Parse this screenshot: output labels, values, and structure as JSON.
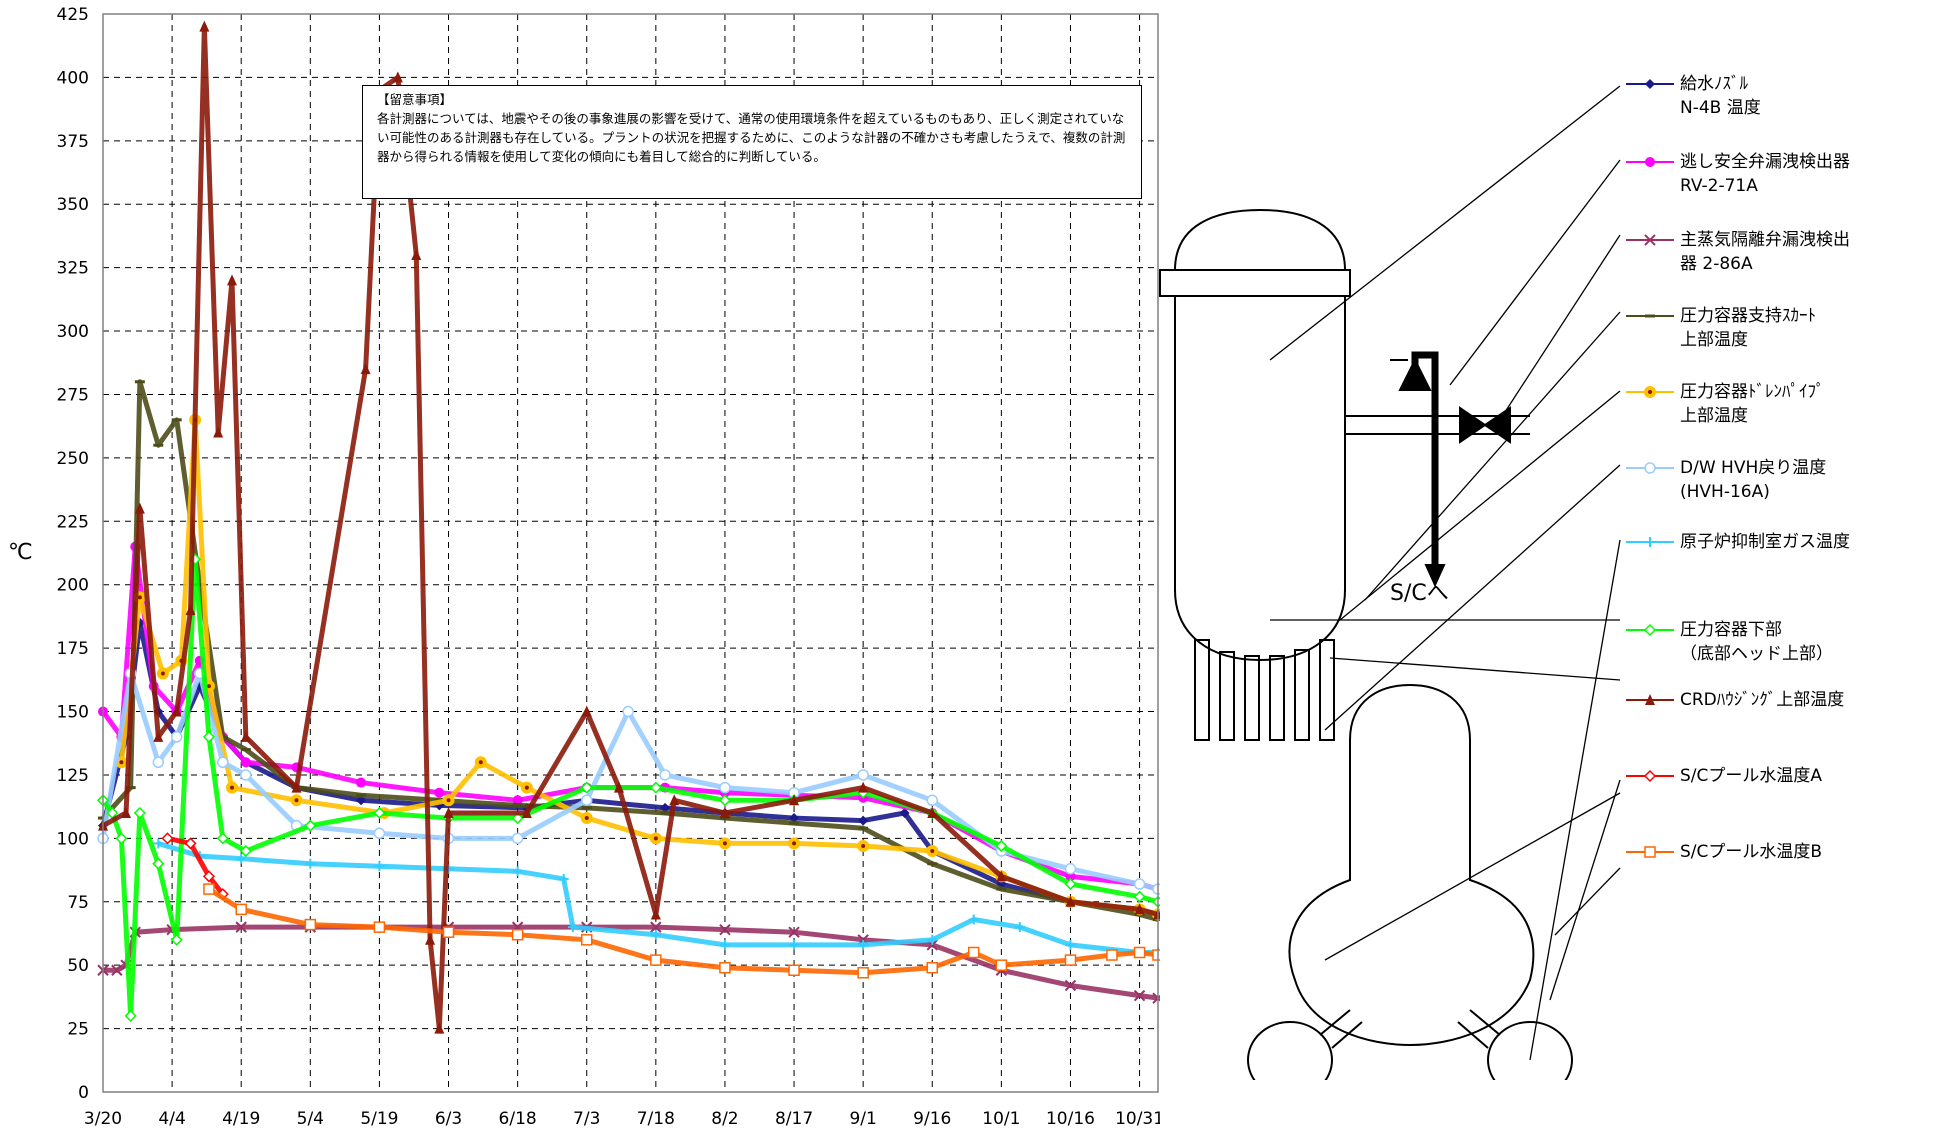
{
  "note": {
    "title": "【留意事項】",
    "body": "各計測器については、地震やその後の事象進展の影響を受けて、通常の使用環境条件を超えているものもあり、正しく測定されていない可能性のある計測器も存在している。プラントの状況を把握するために、このような計器の不確かさも考慮したうえで、複数の計測器から得られる情報を使用して変化の傾向にも着目して総合的に判断している。"
  },
  "diagram": {
    "sc_label": "S/Cへ"
  },
  "chart_data": {
    "type": "line",
    "ylabel": "℃",
    "xlabel": "",
    "ylim": [
      0,
      425
    ],
    "yticks": [
      0,
      25,
      50,
      75,
      100,
      125,
      150,
      175,
      200,
      225,
      250,
      275,
      300,
      325,
      350,
      375,
      400,
      425
    ],
    "xlim": [
      "3/20",
      "11/4"
    ],
    "xticks": [
      "3/20",
      "4/4",
      "4/19",
      "5/4",
      "5/19",
      "6/3",
      "6/18",
      "7/3",
      "7/18",
      "8/2",
      "8/17",
      "9/1",
      "9/16",
      "10/1",
      "10/16",
      "10/31"
    ],
    "grid": true,
    "legend_position": "right",
    "series": [
      {
        "name": "給水ﾉｽﾞﾙ\nN-4B 温度",
        "color": "#1a1a8c",
        "marker": "diamond",
        "points": [
          [
            "3/20",
            105
          ],
          [
            "3/25",
            140
          ],
          [
            "3/28",
            185
          ],
          [
            "4/1",
            150
          ],
          [
            "4/5",
            140
          ],
          [
            "4/10",
            160
          ],
          [
            "4/15",
            140
          ],
          [
            "4/20",
            130
          ],
          [
            "5/1",
            120
          ],
          [
            "5/15",
            115
          ],
          [
            "6/1",
            113
          ],
          [
            "6/20",
            112
          ],
          [
            "7/3",
            115
          ],
          [
            "7/20",
            112
          ],
          [
            "8/2",
            110
          ],
          [
            "8/17",
            108
          ],
          [
            "9/1",
            107
          ],
          [
            "9/10",
            110
          ],
          [
            "9/16",
            95
          ],
          [
            "10/1",
            82
          ],
          [
            "10/16",
            75
          ],
          [
            "10/31",
            72
          ],
          [
            "11/4",
            70
          ]
        ]
      },
      {
        "name": "逃し安全弁漏洩検出器\nRV-2-71A",
        "color": "#ff00ff",
        "marker": "circle",
        "points": [
          [
            "3/20",
            150
          ],
          [
            "3/24",
            140
          ],
          [
            "3/27",
            215
          ],
          [
            "3/31",
            160
          ],
          [
            "4/5",
            150
          ],
          [
            "4/10",
            170
          ],
          [
            "4/15",
            140
          ],
          [
            "4/20",
            130
          ],
          [
            "5/1",
            128
          ],
          [
            "5/15",
            122
          ],
          [
            "6/1",
            118
          ],
          [
            "6/18",
            115
          ],
          [
            "7/3",
            120
          ],
          [
            "7/20",
            120
          ],
          [
            "8/2",
            118
          ],
          [
            "8/17",
            117
          ],
          [
            "9/1",
            116
          ],
          [
            "9/16",
            110
          ],
          [
            "10/1",
            95
          ],
          [
            "10/16",
            85
          ],
          [
            "10/31",
            82
          ],
          [
            "11/4",
            80
          ]
        ]
      },
      {
        "name": "主蒸気隔離弁漏洩検出\n器 2-86A",
        "color": "#993366",
        "marker": "x",
        "points": [
          [
            "3/20",
            48
          ],
          [
            "3/23",
            48
          ],
          [
            "3/25",
            50
          ],
          [
            "3/27",
            63
          ],
          [
            "4/4",
            64
          ],
          [
            "4/19",
            65
          ],
          [
            "5/4",
            65
          ],
          [
            "5/19",
            65
          ],
          [
            "6/3",
            65
          ],
          [
            "6/18",
            65
          ],
          [
            "7/3",
            65
          ],
          [
            "7/18",
            65
          ],
          [
            "8/2",
            64
          ],
          [
            "8/17",
            63
          ],
          [
            "9/1",
            60
          ],
          [
            "9/16",
            58
          ],
          [
            "10/1",
            48
          ],
          [
            "10/16",
            42
          ],
          [
            "10/31",
            38
          ],
          [
            "11/4",
            37
          ]
        ]
      },
      {
        "name": "圧力容器支持ｽｶｰﾄ\n上部温度",
        "color": "#4d4d1a",
        "marker": "dash",
        "points": [
          [
            "3/20",
            108
          ],
          [
            "3/26",
            120
          ],
          [
            "3/28",
            280
          ],
          [
            "4/1",
            255
          ],
          [
            "4/5",
            265
          ],
          [
            "4/10",
            200
          ],
          [
            "4/15",
            140
          ],
          [
            "4/20",
            135
          ],
          [
            "5/1",
            120
          ],
          [
            "5/15",
            117
          ],
          [
            "6/1",
            115
          ],
          [
            "6/18",
            113
          ],
          [
            "7/3",
            112
          ],
          [
            "7/20",
            110
          ],
          [
            "8/2",
            108
          ],
          [
            "8/17",
            106
          ],
          [
            "9/1",
            104
          ],
          [
            "9/16",
            90
          ],
          [
            "10/1",
            80
          ],
          [
            "10/16",
            75
          ],
          [
            "10/31",
            70
          ],
          [
            "11/4",
            68
          ]
        ]
      },
      {
        "name": "圧力容器ﾄﾞﾚﾝﾊﾟｲﾌﾟ\n上部温度",
        "color": "#ffc000",
        "marker": "dotted-circle",
        "points": [
          [
            "3/24",
            130
          ],
          [
            "3/28",
            195
          ],
          [
            "4/2",
            165
          ],
          [
            "4/6",
            170
          ],
          [
            "4/9",
            265
          ],
          [
            "4/12",
            160
          ],
          [
            "4/17",
            120
          ],
          [
            "5/1",
            115
          ],
          [
            "5/20",
            110
          ],
          [
            "6/3",
            115
          ],
          [
            "6/10",
            130
          ],
          [
            "6/20",
            120
          ],
          [
            "7/3",
            108
          ],
          [
            "7/18",
            100
          ],
          [
            "8/2",
            98
          ],
          [
            "8/17",
            98
          ],
          [
            "9/1",
            97
          ],
          [
            "9/16",
            95
          ],
          [
            "10/1",
            85
          ],
          [
            "10/16",
            75
          ],
          [
            "10/31",
            72
          ],
          [
            "11/4",
            70
          ]
        ]
      },
      {
        "name": "D/W HVH戻り温度\n(HVH-16A)",
        "color": "#99ccff",
        "marker": "circle-open",
        "points": [
          [
            "3/20",
            100
          ],
          [
            "3/26",
            165
          ],
          [
            "4/1",
            130
          ],
          [
            "4/5",
            140
          ],
          [
            "4/10",
            165
          ],
          [
            "4/15",
            130
          ],
          [
            "4/20",
            125
          ],
          [
            "5/1",
            105
          ],
          [
            "5/19",
            102
          ],
          [
            "6/3",
            100
          ],
          [
            "6/18",
            100
          ],
          [
            "7/3",
            115
          ],
          [
            "7/12",
            150
          ],
          [
            "7/20",
            125
          ],
          [
            "8/2",
            120
          ],
          [
            "8/17",
            118
          ],
          [
            "9/1",
            125
          ],
          [
            "9/16",
            115
          ],
          [
            "10/1",
            95
          ],
          [
            "10/16",
            88
          ],
          [
            "10/31",
            82
          ],
          [
            "11/4",
            80
          ]
        ]
      },
      {
        "name": "原子炉抑制室ガス温度",
        "color": "#33ccff",
        "marker": "plus",
        "points": [
          [
            "4/1",
            98
          ],
          [
            "4/10",
            93
          ],
          [
            "4/19",
            92
          ],
          [
            "5/4",
            90
          ],
          [
            "5/19",
            89
          ],
          [
            "6/3",
            88
          ],
          [
            "6/18",
            87
          ],
          [
            "6/28",
            84
          ],
          [
            "6/30",
            65
          ],
          [
            "7/18",
            62
          ],
          [
            "8/2",
            58
          ],
          [
            "8/17",
            58
          ],
          [
            "9/1",
            58
          ],
          [
            "9/16",
            60
          ],
          [
            "9/25",
            68
          ],
          [
            "10/5",
            65
          ],
          [
            "10/16",
            58
          ],
          [
            "10/31",
            55
          ],
          [
            "11/4",
            55
          ]
        ]
      },
      {
        "name": "圧力容器下部\n（底部ヘッド上部）",
        "color": "#00ff00",
        "marker": "diamond-open",
        "points": [
          [
            "3/20",
            115
          ],
          [
            "3/22",
            110
          ],
          [
            "3/24",
            100
          ],
          [
            "3/26",
            30
          ],
          [
            "3/28",
            110
          ],
          [
            "4/1",
            90
          ],
          [
            "4/5",
            60
          ],
          [
            "4/9",
            210
          ],
          [
            "4/12",
            140
          ],
          [
            "4/15",
            100
          ],
          [
            "4/20",
            95
          ],
          [
            "5/4",
            105
          ],
          [
            "5/19",
            110
          ],
          [
            "6/3",
            108
          ],
          [
            "6/18",
            108
          ],
          [
            "7/3",
            120
          ],
          [
            "7/18",
            120
          ],
          [
            "8/2",
            115
          ],
          [
            "8/17",
            115
          ],
          [
            "9/1",
            118
          ],
          [
            "9/16",
            110
          ],
          [
            "10/1",
            97
          ],
          [
            "10/16",
            82
          ],
          [
            "10/31",
            77
          ],
          [
            "11/4",
            75
          ]
        ]
      },
      {
        "name": "CRDﾊｳｼﾞﾝｸﾞ上部温度",
        "color": "#8b1a0a",
        "marker": "triangle",
        "points": [
          [
            "3/20",
            105
          ],
          [
            "3/25",
            110
          ],
          [
            "3/28",
            230
          ],
          [
            "4/1",
            140
          ],
          [
            "4/5",
            150
          ],
          [
            "4/8",
            190
          ],
          [
            "4/11",
            420
          ],
          [
            "4/14",
            260
          ],
          [
            "4/17",
            320
          ],
          [
            "4/20",
            140
          ],
          [
            "5/1",
            120
          ],
          [
            "5/16",
            285
          ],
          [
            "5/19",
            395
          ],
          [
            "5/23",
            400
          ],
          [
            "5/27",
            330
          ],
          [
            "5/30",
            60
          ],
          [
            "6/1",
            25
          ],
          [
            "6/3",
            110
          ],
          [
            "6/20",
            110
          ],
          [
            "7/3",
            150
          ],
          [
            "7/10",
            120
          ],
          [
            "7/18",
            70
          ],
          [
            "7/22",
            115
          ],
          [
            "8/2",
            110
          ],
          [
            "8/17",
            115
          ],
          [
            "9/1",
            120
          ],
          [
            "9/16",
            110
          ],
          [
            "10/1",
            85
          ],
          [
            "10/16",
            75
          ],
          [
            "10/31",
            72
          ],
          [
            "11/4",
            70
          ]
        ]
      },
      {
        "name": "S/Cプール水温度A",
        "color": "#ff0000",
        "marker": "diamond-open",
        "points": [
          [
            "4/3",
            100
          ],
          [
            "4/8",
            98
          ],
          [
            "4/12",
            85
          ],
          [
            "4/15",
            78
          ]
        ]
      },
      {
        "name": "S/Cプール水温度B",
        "color": "#ff6600",
        "marker": "square-open",
        "points": [
          [
            "4/12",
            80
          ],
          [
            "4/19",
            72
          ],
          [
            "5/4",
            66
          ],
          [
            "5/19",
            65
          ],
          [
            "6/3",
            63
          ],
          [
            "6/18",
            62
          ],
          [
            "7/3",
            60
          ],
          [
            "7/18",
            52
          ],
          [
            "8/2",
            49
          ],
          [
            "8/17",
            48
          ],
          [
            "9/1",
            47
          ],
          [
            "9/16",
            49
          ],
          [
            "9/25",
            55
          ],
          [
            "10/1",
            50
          ],
          [
            "10/16",
            52
          ],
          [
            "10/25",
            54
          ],
          [
            "10/31",
            55
          ],
          [
            "11/4",
            54
          ]
        ]
      }
    ]
  }
}
